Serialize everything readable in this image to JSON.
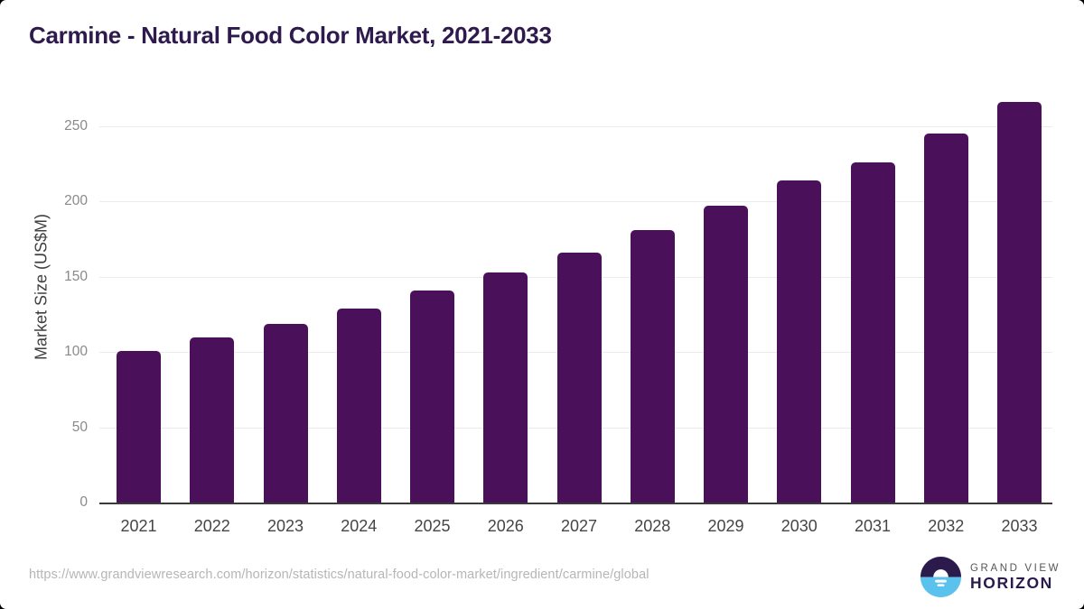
{
  "page": {
    "title": "Carmine - Natural Food Color Market, 2021-2033"
  },
  "chart_data": {
    "type": "bar",
    "title": "Carmine - Natural Food Color Market, 2021-2033",
    "categories": [
      "2021",
      "2022",
      "2023",
      "2024",
      "2025",
      "2026",
      "2027",
      "2028",
      "2029",
      "2030",
      "2031",
      "2032",
      "2033"
    ],
    "values": [
      101,
      110,
      119,
      129,
      141,
      153,
      166,
      181,
      197,
      214,
      226,
      245,
      266
    ],
    "xlabel": "",
    "ylabel": "Market Size (US$M)",
    "ylim": [
      0,
      250
    ],
    "yticks": [
      0,
      50,
      100,
      150,
      200,
      250
    ],
    "grid": true,
    "legend": false,
    "bar_color": "#4a115a"
  },
  "footer": {
    "source_url": "https://www.grandviewresearch.com/horizon/statistics/natural-food-color-market/ingredient/carmine/global",
    "logo": {
      "brand_top": "GRAND VIEW",
      "brand_bottom": "HORIZON"
    }
  },
  "colors": {
    "title": "#2e1a4d",
    "bar": "#4a115a",
    "axis_line": "#3a3a3a",
    "gridline": "#ebebeb",
    "y_tick": "#8a8a8a",
    "x_tick": "#454545",
    "y_axis_label": "#3f3f3f",
    "footer_url": "#b6b6b6",
    "logo_dark": "#2b1b4d",
    "logo_blue": "#5bc2ee",
    "logo_gray_text": "#55555a"
  }
}
